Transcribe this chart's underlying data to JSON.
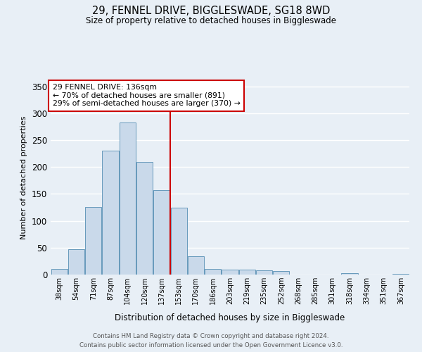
{
  "title": "29, FENNEL DRIVE, BIGGLESWADE, SG18 8WD",
  "subtitle": "Size of property relative to detached houses in Biggleswade",
  "xlabel": "Distribution of detached houses by size in Biggleswade",
  "ylabel": "Number of detached properties",
  "bin_labels": [
    "38sqm",
    "54sqm",
    "71sqm",
    "87sqm",
    "104sqm",
    "120sqm",
    "137sqm",
    "153sqm",
    "170sqm",
    "186sqm",
    "203sqm",
    "219sqm",
    "235sqm",
    "252sqm",
    "268sqm",
    "285sqm",
    "301sqm",
    "318sqm",
    "334sqm",
    "351sqm",
    "367sqm"
  ],
  "bar_heights": [
    10,
    47,
    126,
    231,
    283,
    210,
    157,
    125,
    34,
    10,
    9,
    9,
    8,
    6,
    0,
    0,
    0,
    2,
    0,
    0,
    1
  ],
  "bar_color": "#c9d9ea",
  "bar_edge_color": "#6699bb",
  "highlight_bin_index": 6,
  "highlight_color": "#cc0000",
  "annotation_title": "29 FENNEL DRIVE: 136sqm",
  "annotation_line1": "← 70% of detached houses are smaller (891)",
  "annotation_line2": "29% of semi-detached houses are larger (370) →",
  "annotation_box_color": "#ffffff",
  "annotation_box_edge": "#cc0000",
  "ylim": [
    0,
    360
  ],
  "yticks": [
    0,
    50,
    100,
    150,
    200,
    250,
    300,
    350
  ],
  "footer1": "Contains HM Land Registry data © Crown copyright and database right 2024.",
  "footer2": "Contains public sector information licensed under the Open Government Licence v3.0.",
  "bg_color": "#e8eff6",
  "plot_bg_color": "#e8eff6"
}
